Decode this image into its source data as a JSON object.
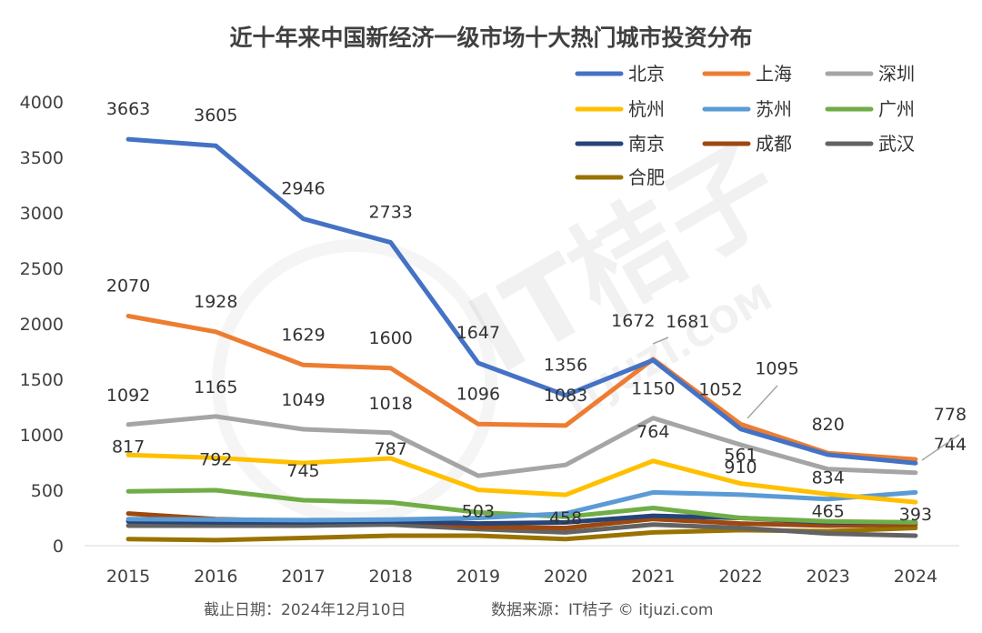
{
  "chart_data": {
    "type": "line",
    "title": "近十年来中国新经济一级市场十大热门城市投资分布",
    "xlabel": "",
    "ylabel": "",
    "ylim": [
      0,
      4000
    ],
    "yticks": [
      "0",
      "500",
      "1000",
      "1500",
      "2000",
      "2500",
      "3000",
      "3500",
      "4000"
    ],
    "categories": [
      "2015",
      "2016",
      "2017",
      "2018",
      "2019",
      "2020",
      "2021",
      "2022",
      "2023",
      "2024"
    ],
    "legend_position": "top-right",
    "series": [
      {
        "name": "北京",
        "color": "#4472C4",
        "values": [
          3663,
          3605,
          2946,
          2733,
          1647,
          1356,
          1672,
          1052,
          820,
          744
        ],
        "labeled": true
      },
      {
        "name": "上海",
        "color": "#ED7D31",
        "values": [
          2070,
          1928,
          1629,
          1600,
          1096,
          1083,
          1681,
          1095,
          834,
          778
        ],
        "labeled": true
      },
      {
        "name": "深圳",
        "color": "#A5A5A5",
        "values": [
          1092,
          1165,
          1049,
          1018,
          630,
          728,
          1150,
          910,
          690,
          658
        ],
        "labeled": true,
        "label_indices": [
          0,
          1,
          2,
          3,
          6,
          7
        ]
      },
      {
        "name": "杭州",
        "color": "#FFC000",
        "values": [
          817,
          792,
          745,
          787,
          503,
          458,
          764,
          561,
          465,
          393
        ],
        "labeled": true
      },
      {
        "name": "苏州",
        "color": "#5B9BD5",
        "values": [
          240,
          235,
          230,
          235,
          250,
          290,
          480,
          460,
          420,
          480
        ],
        "labeled": false
      },
      {
        "name": "广州",
        "color": "#70AD47",
        "values": [
          490,
          500,
          410,
          390,
          300,
          260,
          340,
          250,
          220,
          210
        ],
        "labeled": false
      },
      {
        "name": "南京",
        "color": "#264478",
        "values": [
          220,
          210,
          210,
          220,
          200,
          210,
          270,
          250,
          210,
          210
        ],
        "labeled": false
      },
      {
        "name": "成都",
        "color": "#9E480E",
        "values": [
          290,
          240,
          220,
          230,
          170,
          160,
          240,
          200,
          180,
          190
        ],
        "labeled": false
      },
      {
        "name": "武汉",
        "color": "#636363",
        "values": [
          180,
          180,
          180,
          190,
          150,
          120,
          190,
          160,
          110,
          90
        ],
        "labeled": false
      },
      {
        "name": "合肥",
        "color": "#997300",
        "values": [
          60,
          50,
          70,
          90,
          90,
          60,
          120,
          140,
          130,
          160
        ],
        "labeled": false
      }
    ]
  },
  "footer": {
    "date": "截止日期：2024年12月10日",
    "source": "数据来源：IT桔子 © itjuzi.com"
  },
  "watermark": {
    "main": "IT桔子",
    "sub": "ITJUZI.COM"
  }
}
